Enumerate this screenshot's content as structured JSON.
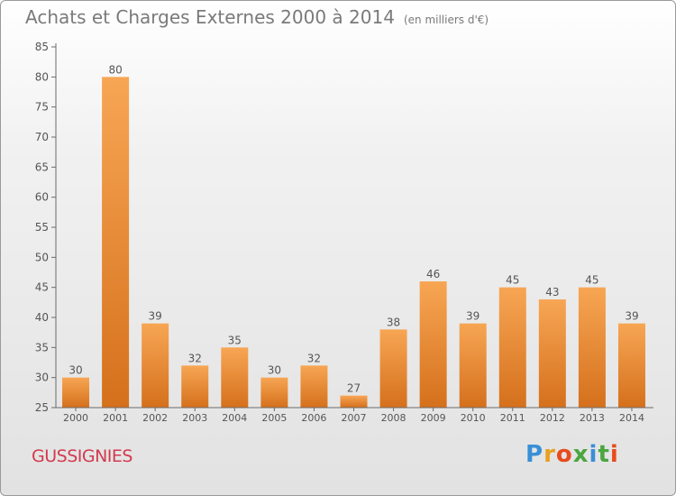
{
  "title": "Achats et Charges Externes 2000 à 2014",
  "subtitle": "(en milliers d'€)",
  "commune": "GUSSIGNIES",
  "logo": {
    "text": "Proxiti",
    "colors": [
      "#3a8fd6",
      "#e8a020",
      "#e84b1c",
      "#4aa640",
      "#3a8fd6",
      "#4aa640",
      "#e84b1c"
    ]
  },
  "colors": {
    "bar_top": "#f7a654",
    "bar_bottom": "#d5701c",
    "title": "#7a7a7a",
    "commune": "#d33a4f"
  },
  "chart_data": {
    "type": "bar",
    "title": "Achats et Charges Externes 2000 à 2014",
    "subtitle": "(en milliers d'€)",
    "categories": [
      "2000",
      "2001",
      "2002",
      "2003",
      "2004",
      "2005",
      "2006",
      "2007",
      "2008",
      "2009",
      "2010",
      "2011",
      "2012",
      "2013",
      "2014"
    ],
    "values": [
      30,
      80,
      39,
      32,
      35,
      30,
      32,
      27,
      38,
      46,
      39,
      45,
      43,
      45,
      39
    ],
    "ylim": [
      25,
      85
    ],
    "yticks": [
      25,
      30,
      35,
      40,
      45,
      50,
      55,
      60,
      65,
      70,
      75,
      80,
      85
    ],
    "grid": false,
    "legend": "none"
  }
}
